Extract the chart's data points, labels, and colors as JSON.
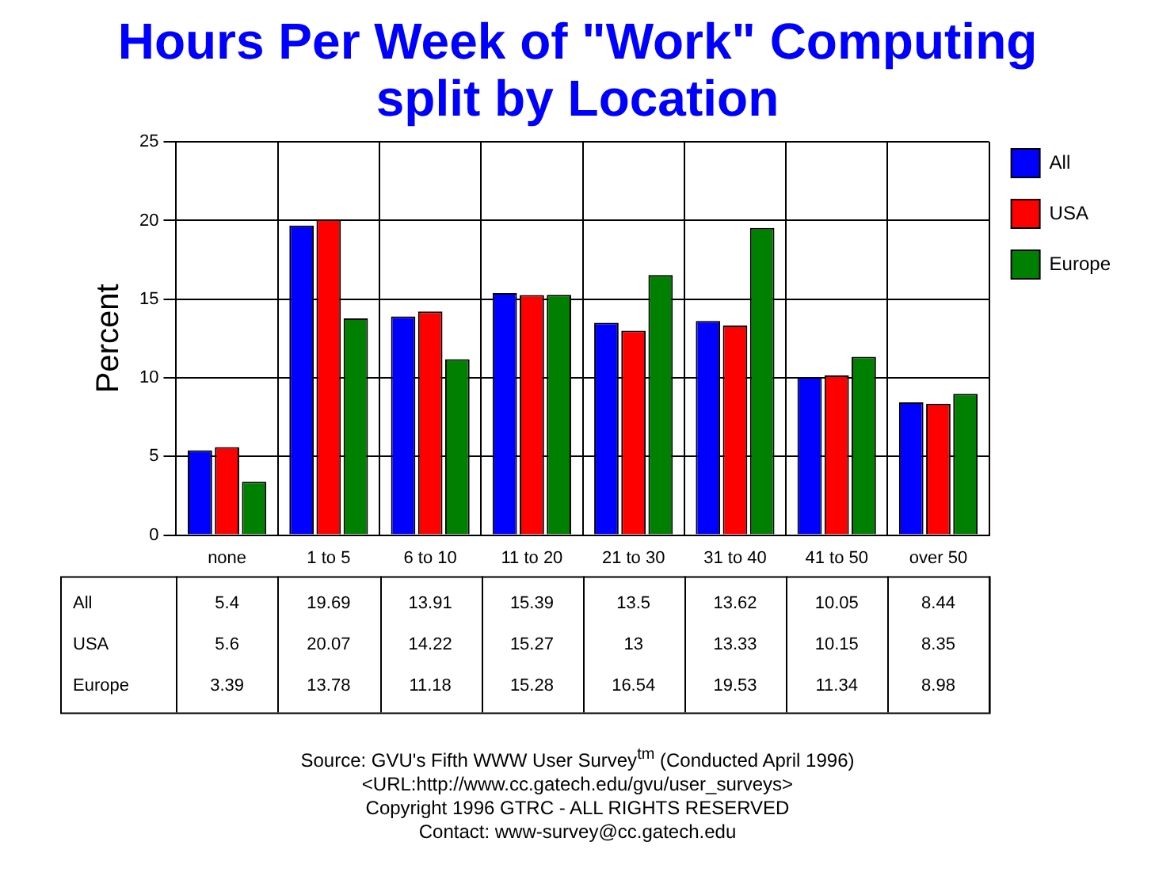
{
  "chart_data": {
    "type": "bar",
    "title": "Hours Per Week of \"Work\" Computing split by Location",
    "ylabel": "Percent",
    "categories": [
      "none",
      "1 to 5",
      "6 to 10",
      "11 to 20",
      "21 to 30",
      "31 to 40",
      "41 to 50",
      "over 50"
    ],
    "series": [
      {
        "name": "All",
        "color": "#0000ff",
        "values": [
          5.4,
          19.69,
          13.91,
          15.39,
          13.5,
          13.62,
          10.05,
          8.44
        ]
      },
      {
        "name": "USA",
        "color": "#ff0000",
        "values": [
          5.6,
          20.07,
          14.22,
          15.27,
          13,
          13.33,
          10.15,
          8.35
        ]
      },
      {
        "name": "Europe",
        "color": "#008000",
        "values": [
          3.39,
          13.78,
          11.18,
          15.28,
          16.54,
          19.53,
          11.34,
          8.98
        ]
      }
    ],
    "ylim": [
      0,
      25
    ],
    "yticks": [
      0,
      5,
      10,
      15,
      20,
      25
    ],
    "grid": true,
    "legend": "top right",
    "data_labels": true,
    "annotations": [
      "Source: GVU's Fifth WWW User Survey$^{tm}$  (Conducted April 1996)",
      "<URL:http://www.cc.gatech.edu/gvu/user_surveys>",
      "Copyright 1996 GTRC -  ALL RIGHTS RESERVED",
      "Contact: www-survey@cc.gatech.edu"
    ]
  }
}
